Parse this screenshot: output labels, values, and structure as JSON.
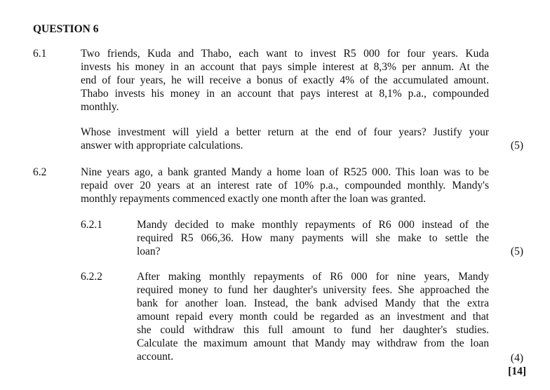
{
  "title": "QUESTION 6",
  "q61": {
    "number": "6.1",
    "para1": [
      "Two friends, Kuda and Thabo, each want to invest R5 000 for four years. Kuda",
      "invests his money in an account that pays simple interest at 8,3% per annum. At the",
      "end of four years, he will receive a bonus of exactly 4% of the accumulated amount.",
      "Thabo invests his money in an account that pays interest at 8,1% p.a., compounded",
      "monthly."
    ],
    "para2": [
      "Whose investment will yield a better return at the end of four years? Justify your",
      "answer with appropriate calculations."
    ],
    "marks": "(5)"
  },
  "q62": {
    "number": "6.2",
    "para": [
      "Nine years ago, a bank granted Mandy a home loan of R525 000. This loan was to be",
      "repaid over 20 years at an interest rate of 10% p.a., compounded monthly.  Mandy's",
      "monthly repayments commenced exactly one month after the loan was granted."
    ],
    "q621": {
      "number": "6.2.1",
      "lines": [
        "Mandy decided to make monthly repayments of R6 000 instead of the",
        "required R5 066,36. How many payments will she make to settle the",
        "loan?"
      ],
      "marks": "(5)"
    },
    "q622": {
      "number": "6.2.2",
      "lines": [
        "After making monthly repayments of R6 000 for nine years, Mandy",
        "required money to fund her daughter's university fees. She approached the",
        "bank for another loan. Instead, the bank advised Mandy that the extra",
        "amount repaid every month could be regarded as an investment and that",
        "she could withdraw this full amount to fund her daughter's studies.",
        "Calculate the maximum amount that Mandy may withdraw from the loan",
        "account."
      ],
      "marks": "(4)"
    },
    "total": "[14]"
  }
}
